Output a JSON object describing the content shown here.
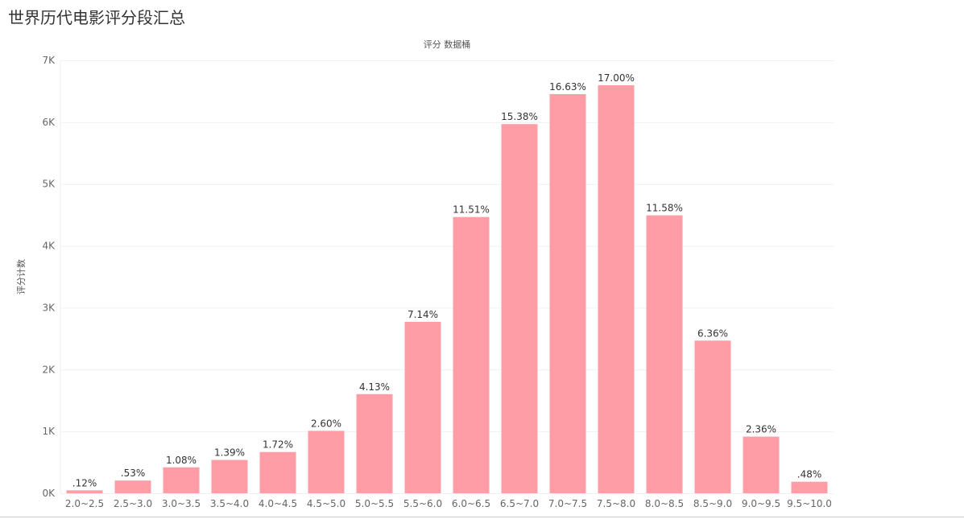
{
  "title": "世界历代电影评分段汇总",
  "chart_data": {
    "type": "bar",
    "title": "评分 数据桶",
    "xlabel": "评分 数据桶",
    "ylabel": "评分计数",
    "ylim": [
      0,
      7000
    ],
    "yticks": [
      0,
      1000,
      2000,
      3000,
      4000,
      5000,
      6000,
      7000
    ],
    "ytick_labels": [
      "0K",
      "1K",
      "2K",
      "3K",
      "4K",
      "5K",
      "6K",
      "7K"
    ],
    "grid": true,
    "categories": [
      "2.0~2.5",
      "2.5~3.0",
      "3.0~3.5",
      "3.5~4.0",
      "4.0~4.5",
      "4.5~5.0",
      "5.0~5.5",
      "5.5~6.0",
      "6.0~6.5",
      "6.5~7.0",
      "7.0~7.5",
      "7.5~8.0",
      "8.0~8.5",
      "8.5~9.0",
      "9.0~9.5",
      "9.5~10.0"
    ],
    "values": [
      47,
      206,
      419,
      539,
      667,
      1009,
      1603,
      2771,
      4467,
      5969,
      6454,
      6598,
      4494,
      2468,
      916,
      186
    ],
    "labels": [
      ".12%",
      ".53%",
      "1.08%",
      "1.39%",
      "1.72%",
      "2.60%",
      "4.13%",
      "7.14%",
      "11.51%",
      "15.38%",
      "16.63%",
      "17.00%",
      "11.58%",
      "6.36%",
      "2.36%",
      ".48%"
    ],
    "bar_color": "#ff9da7",
    "grid_color": "#f0f0f0"
  }
}
